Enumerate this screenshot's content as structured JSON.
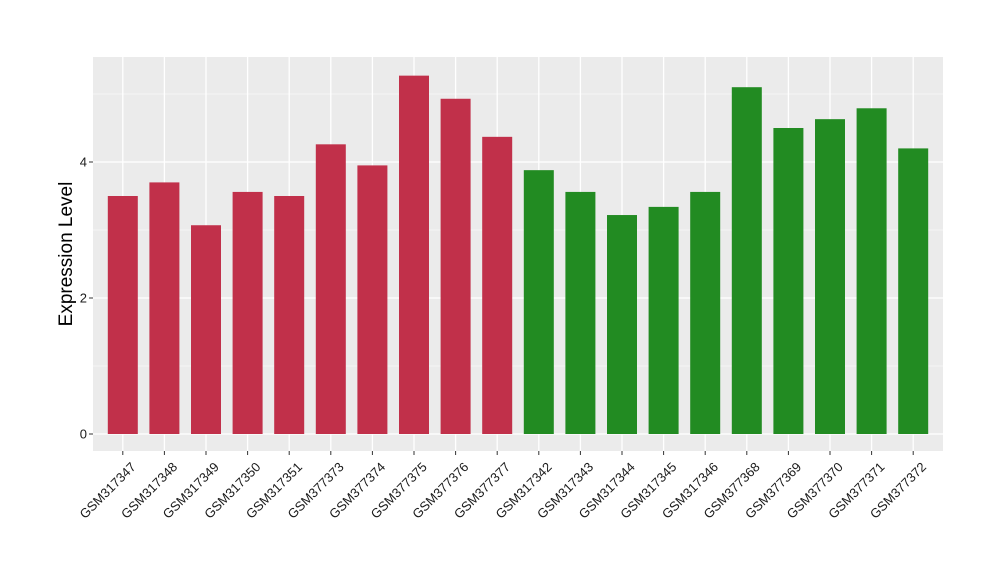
{
  "chart_data": {
    "type": "bar",
    "ylabel": "Expression Level",
    "xlabel": "",
    "ylim": [
      0,
      5.5
    ],
    "yticks": [
      0,
      2,
      4
    ],
    "grid": true,
    "legend": "none",
    "categories": [
      "GSM317347",
      "GSM317348",
      "GSM317349",
      "GSM317350",
      "GSM317351",
      "GSM377373",
      "GSM377374",
      "GSM377375",
      "GSM377376",
      "GSM377377",
      "GSM317342",
      "GSM317343",
      "GSM317344",
      "GSM317345",
      "GSM317346",
      "GSM377368",
      "GSM377369",
      "GSM377370",
      "GSM377371",
      "GSM377372"
    ],
    "values": [
      3.5,
      3.7,
      3.07,
      3.56,
      3.5,
      4.26,
      3.95,
      5.27,
      4.93,
      4.37,
      3.88,
      3.56,
      3.22,
      3.34,
      3.56,
      5.1,
      4.5,
      4.63,
      4.79,
      4.2
    ],
    "bar_colors": [
      "#c1304a",
      "#c1304a",
      "#c1304a",
      "#c1304a",
      "#c1304a",
      "#c1304a",
      "#c1304a",
      "#c1304a",
      "#c1304a",
      "#c1304a",
      "#228b22",
      "#228b22",
      "#228b22",
      "#228b22",
      "#228b22",
      "#228b22",
      "#228b22",
      "#228b22",
      "#228b22",
      "#228b22"
    ],
    "panel_color": "#ebebeb",
    "grid_color": "#ffffff"
  }
}
